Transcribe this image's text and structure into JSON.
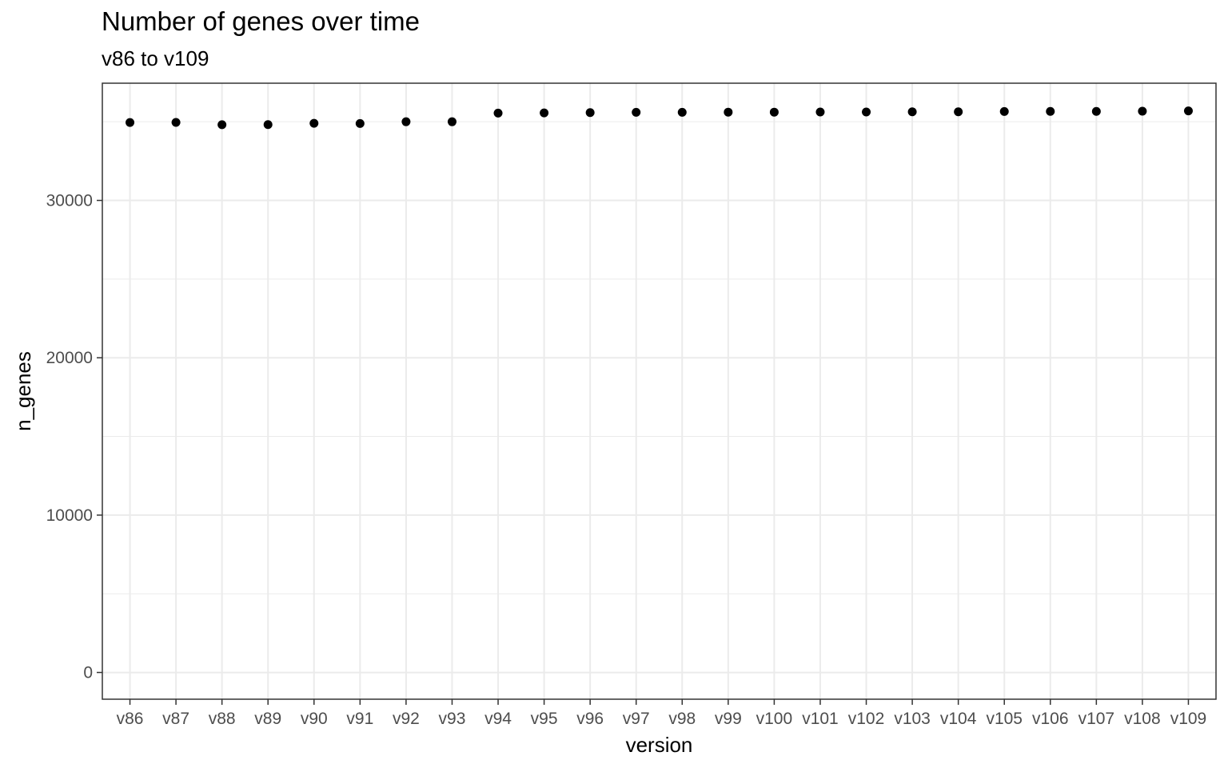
{
  "chart_data": {
    "type": "scatter",
    "title": "Number of genes over time",
    "subtitle": "v86 to v109",
    "xlabel": "version",
    "ylabel": "n_genes",
    "categories": [
      "v86",
      "v87",
      "v88",
      "v89",
      "v90",
      "v91",
      "v92",
      "v93",
      "v94",
      "v95",
      "v96",
      "v97",
      "v98",
      "v99",
      "v100",
      "v101",
      "v102",
      "v103",
      "v104",
      "v105",
      "v106",
      "v107",
      "v108",
      "v109"
    ],
    "values": [
      34950,
      34960,
      34810,
      34820,
      34900,
      34890,
      35000,
      35000,
      35550,
      35560,
      35580,
      35600,
      35600,
      35610,
      35610,
      35620,
      35620,
      35630,
      35630,
      35650,
      35660,
      35660,
      35670,
      35690
    ],
    "ylim": [
      -1700,
      37450
    ],
    "yticks": [
      0,
      10000,
      20000,
      30000
    ],
    "ytick_labels": [
      "0",
      "10000",
      "20000",
      "30000"
    ],
    "grid": true,
    "point_color": "#000000",
    "grid_color": "#ebebeb",
    "border_color": "#333333"
  }
}
